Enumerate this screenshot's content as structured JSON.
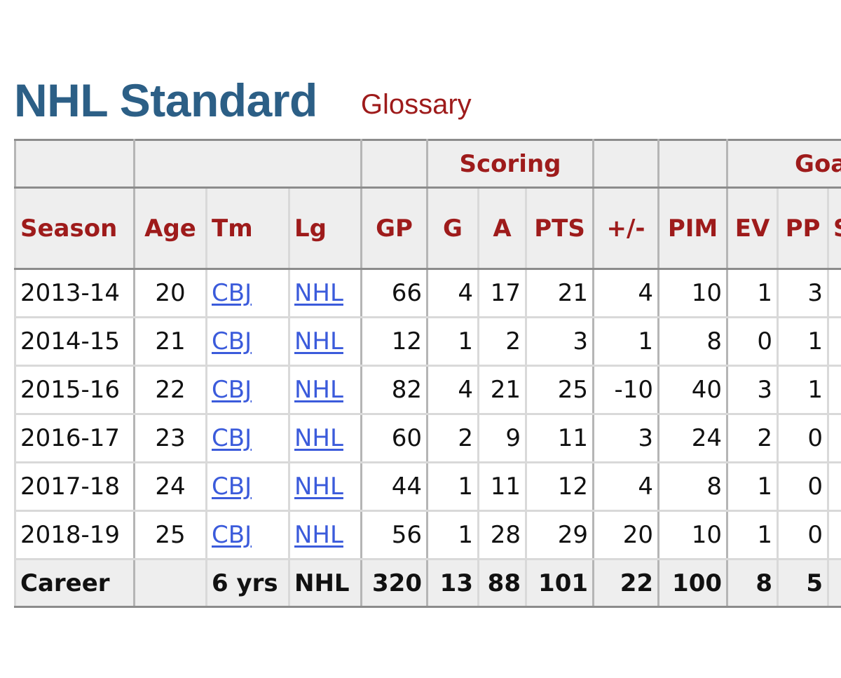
{
  "header": {
    "title": "NHL Standard",
    "glossary_label": "Glossary"
  },
  "table": {
    "over_headers": [
      "",
      "",
      "",
      "Scoring",
      "",
      "",
      "Goa"
    ],
    "columns": [
      "Season",
      "Age",
      "Tm",
      "Lg",
      "GP",
      "G",
      "A",
      "PTS",
      "+/-",
      "PIM",
      "EV",
      "PP",
      "S"
    ],
    "rows": [
      {
        "season": "2013-14",
        "age": "20",
        "tm": "CBJ",
        "lg": "NHL",
        "gp": "66",
        "g": "4",
        "a": "17",
        "pts": "21",
        "plusminus": "4",
        "pim": "10",
        "ev": "1",
        "pp": "3"
      },
      {
        "season": "2014-15",
        "age": "21",
        "tm": "CBJ",
        "lg": "NHL",
        "gp": "12",
        "g": "1",
        "a": "2",
        "pts": "3",
        "plusminus": "1",
        "pim": "8",
        "ev": "0",
        "pp": "1"
      },
      {
        "season": "2015-16",
        "age": "22",
        "tm": "CBJ",
        "lg": "NHL",
        "gp": "82",
        "g": "4",
        "a": "21",
        "pts": "25",
        "plusminus": "-10",
        "pim": "40",
        "ev": "3",
        "pp": "1"
      },
      {
        "season": "2016-17",
        "age": "23",
        "tm": "CBJ",
        "lg": "NHL",
        "gp": "60",
        "g": "2",
        "a": "9",
        "pts": "11",
        "plusminus": "3",
        "pim": "24",
        "ev": "2",
        "pp": "0"
      },
      {
        "season": "2017-18",
        "age": "24",
        "tm": "CBJ",
        "lg": "NHL",
        "gp": "44",
        "g": "1",
        "a": "11",
        "pts": "12",
        "plusminus": "4",
        "pim": "8",
        "ev": "1",
        "pp": "0"
      },
      {
        "season": "2018-19",
        "age": "25",
        "tm": "CBJ",
        "lg": "NHL",
        "gp": "56",
        "g": "1",
        "a": "28",
        "pts": "29",
        "plusminus": "20",
        "pim": "10",
        "ev": "1",
        "pp": "0"
      }
    ],
    "career": {
      "season": "Career",
      "age": "",
      "tm": "6 yrs",
      "lg": "NHL",
      "gp": "320",
      "g": "13",
      "a": "88",
      "pts": "101",
      "plusminus": "22",
      "pim": "100",
      "ev": "8",
      "pp": "5"
    }
  },
  "colors": {
    "title": "#2c5f86",
    "header_text": "#9e1b1b",
    "link": "#3b5bdb",
    "header_bg": "#eeeeee"
  }
}
